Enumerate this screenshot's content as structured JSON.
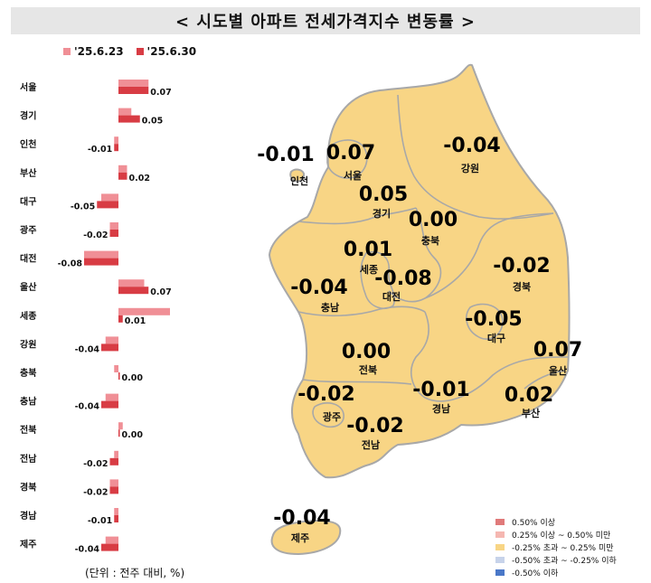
{
  "title": "< 시도별 아파트 전세가격지수 변동률 >",
  "unit_note": "(단위 : 전주 대비, %)",
  "chart_data": {
    "type": "bar",
    "orientation": "horizontal",
    "categories": [
      "서울",
      "경기",
      "인천",
      "부산",
      "대구",
      "광주",
      "대전",
      "울산",
      "세종",
      "강원",
      "충북",
      "충남",
      "전북",
      "전남",
      "경북",
      "경남",
      "제주"
    ],
    "series": [
      {
        "name": "'25.6.23",
        "color": "#f08f96",
        "values": [
          0.07,
          0.03,
          -0.01,
          0.02,
          -0.04,
          -0.02,
          -0.08,
          0.06,
          0.12,
          -0.03,
          -0.01,
          -0.03,
          0.01,
          -0.01,
          -0.02,
          -0.01,
          -0.03
        ]
      },
      {
        "name": "'25.6.30",
        "color": "#d83c44",
        "values": [
          0.07,
          0.05,
          -0.01,
          0.02,
          -0.05,
          -0.02,
          -0.08,
          0.07,
          0.01,
          -0.04,
          0.0,
          -0.04,
          0.0,
          -0.02,
          -0.02,
          -0.01,
          -0.04
        ]
      }
    ],
    "value_labels": [
      "0.07",
      "0.05",
      "-0.01",
      "0.02",
      "-0.05",
      "-0.02",
      "-0.08",
      "0.07",
      "0.01",
      "-0.04",
      "0.00",
      "-0.04",
      "0.00",
      "-0.02",
      "-0.02",
      "-0.01",
      "-0.04"
    ],
    "grid": false
  },
  "map": {
    "fill_color": "#f8d585",
    "border_color": "#a8a8a8",
    "labels": [
      {
        "value": "-0.01",
        "region": "인천"
      },
      {
        "value": "0.07",
        "region": "서울"
      },
      {
        "value": "-0.04",
        "region": "강원"
      },
      {
        "value": "0.05",
        "region": "경기"
      },
      {
        "value": "0.00",
        "region": "충북"
      },
      {
        "value": "0.01",
        "region": "세종"
      },
      {
        "value": "-0.08",
        "region": "대전"
      },
      {
        "value": "-0.04",
        "region": "충남"
      },
      {
        "value": "-0.02",
        "region": "경북"
      },
      {
        "value": "-0.05",
        "region": "대구"
      },
      {
        "value": "0.07",
        "region": "울산"
      },
      {
        "value": "0.00",
        "region": "전북"
      },
      {
        "value": "-0.02",
        "region": "광주"
      },
      {
        "value": "-0.01",
        "region": "경남"
      },
      {
        "value": "0.02",
        "region": "부산"
      },
      {
        "value": "-0.02",
        "region": "전남"
      },
      {
        "value": "-0.04",
        "region": "제주"
      }
    ]
  },
  "map_legend": [
    {
      "label": "0.50% 이상",
      "color": "#e07a7a"
    },
    {
      "label": "0.25% 이상 ~ 0.50% 미만",
      "color": "#f5b7b1"
    },
    {
      "label": "-0.25% 초과 ~ 0.25% 미만",
      "color": "#f8d585"
    },
    {
      "label": "-0.50% 초과 ~ -0.25% 이하",
      "color": "#c7d3ea"
    },
    {
      "label": "-0.50% 이하",
      "color": "#4a78c8"
    }
  ]
}
